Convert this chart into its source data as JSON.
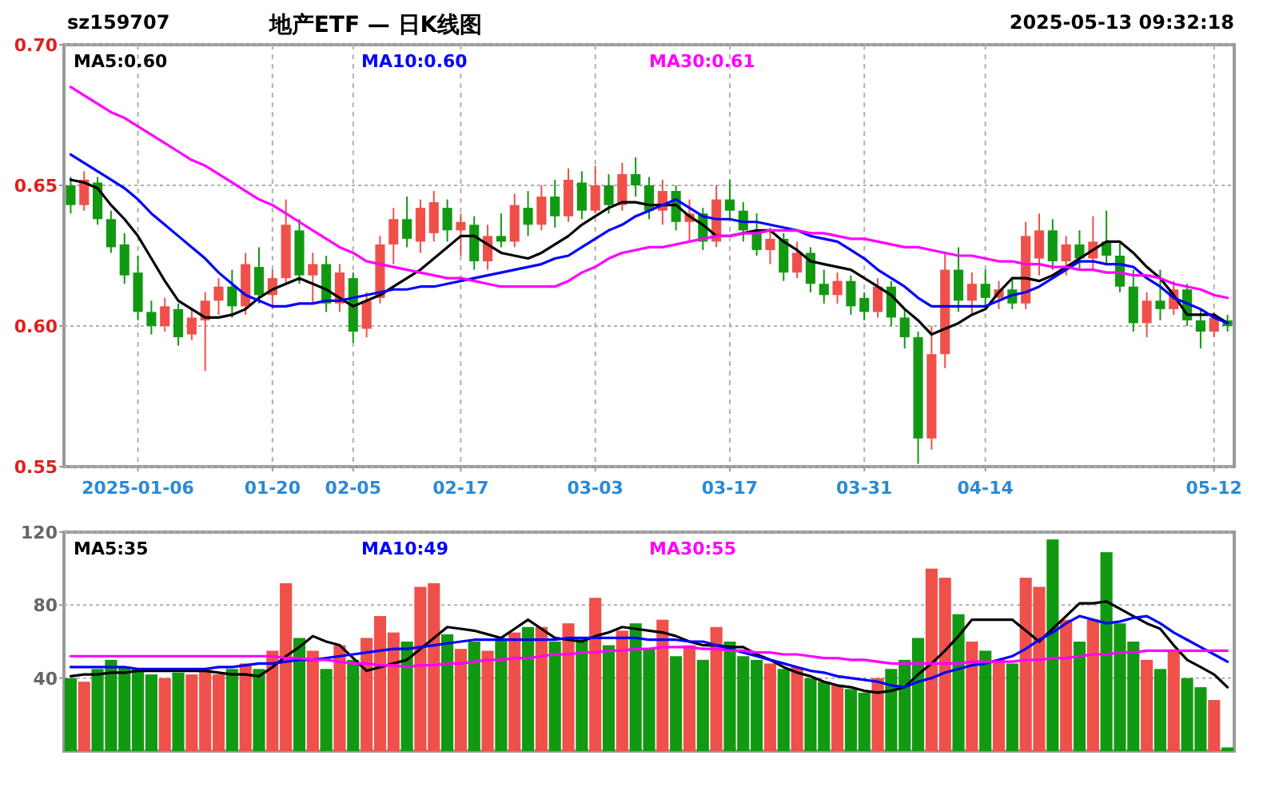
{
  "chart_data": [
    {
      "type": "candlestick",
      "title": "地产ETF — 日K线图",
      "annotations": [
        "sz159707",
        "2025-05-13 09:32:18"
      ],
      "categories": [
        null,
        null,
        null,
        null,
        null,
        "2025-01-06",
        null,
        null,
        null,
        null,
        null,
        null,
        null,
        null,
        null,
        "01-20",
        null,
        null,
        null,
        null,
        null,
        "02-05",
        null,
        null,
        null,
        null,
        null,
        null,
        null,
        "02-17",
        null,
        null,
        null,
        null,
        null,
        null,
        null,
        null,
        null,
        "03-03",
        null,
        null,
        null,
        null,
        null,
        null,
        null,
        null,
        null,
        "03-17",
        null,
        null,
        null,
        null,
        null,
        null,
        null,
        null,
        null,
        "03-31",
        null,
        null,
        null,
        null,
        null,
        null,
        null,
        null,
        "04-14",
        null,
        null,
        null,
        null,
        null,
        null,
        null,
        null,
        null,
        null,
        null,
        null,
        null,
        null,
        null,
        null,
        "05-12",
        null
      ],
      "ohlc": [
        [
          0.65,
          0.653,
          0.64,
          0.643
        ],
        [
          0.643,
          0.655,
          0.641,
          0.652
        ],
        [
          0.651,
          0.653,
          0.636,
          0.638
        ],
        [
          0.638,
          0.641,
          0.626,
          0.628
        ],
        [
          0.629,
          0.633,
          0.615,
          0.618
        ],
        [
          0.619,
          0.625,
          0.602,
          0.605
        ],
        [
          0.605,
          0.609,
          0.597,
          0.6
        ],
        [
          0.6,
          0.61,
          0.598,
          0.607
        ],
        [
          0.606,
          0.608,
          0.593,
          0.596
        ],
        [
          0.597,
          0.606,
          0.595,
          0.603
        ],
        [
          0.602,
          0.612,
          0.584,
          0.609
        ],
        [
          0.609,
          0.617,
          0.604,
          0.614
        ],
        [
          0.614,
          0.62,
          0.603,
          0.607
        ],
        [
          0.607,
          0.626,
          0.604,
          0.622
        ],
        [
          0.621,
          0.628,
          0.608,
          0.611
        ],
        [
          0.611,
          0.62,
          0.606,
          0.617
        ],
        [
          0.617,
          0.645,
          0.615,
          0.636
        ],
        [
          0.634,
          0.638,
          0.615,
          0.618
        ],
        [
          0.618,
          0.626,
          0.608,
          0.622
        ],
        [
          0.622,
          0.625,
          0.605,
          0.608
        ],
        [
          0.608,
          0.622,
          0.605,
          0.619
        ],
        [
          0.617,
          0.619,
          0.594,
          0.598
        ],
        [
          0.599,
          0.612,
          0.596,
          0.609
        ],
        [
          0.61,
          0.632,
          0.608,
          0.629
        ],
        [
          0.629,
          0.642,
          0.622,
          0.638
        ],
        [
          0.638,
          0.646,
          0.628,
          0.631
        ],
        [
          0.63,
          0.645,
          0.626,
          0.642
        ],
        [
          0.633,
          0.648,
          0.63,
          0.644
        ],
        [
          0.642,
          0.645,
          0.63,
          0.634
        ],
        [
          0.634,
          0.64,
          0.625,
          0.637
        ],
        [
          0.636,
          0.639,
          0.62,
          0.623
        ],
        [
          0.623,
          0.636,
          0.62,
          0.632
        ],
        [
          0.632,
          0.64,
          0.628,
          0.63
        ],
        [
          0.63,
          0.647,
          0.628,
          0.643
        ],
        [
          0.642,
          0.648,
          0.632,
          0.636
        ],
        [
          0.636,
          0.65,
          0.634,
          0.646
        ],
        [
          0.646,
          0.652,
          0.635,
          0.639
        ],
        [
          0.639,
          0.656,
          0.637,
          0.652
        ],
        [
          0.651,
          0.655,
          0.638,
          0.641
        ],
        [
          0.641,
          0.657,
          0.64,
          0.65
        ],
        [
          0.65,
          0.654,
          0.64,
          0.643
        ],
        [
          0.643,
          0.658,
          0.641,
          0.654
        ],
        [
          0.654,
          0.66,
          0.646,
          0.65
        ],
        [
          0.65,
          0.653,
          0.638,
          0.641
        ],
        [
          0.641,
          0.652,
          0.636,
          0.648
        ],
        [
          0.648,
          0.65,
          0.634,
          0.637
        ],
        [
          0.637,
          0.645,
          0.63,
          0.64
        ],
        [
          0.64,
          0.642,
          0.627,
          0.63
        ],
        [
          0.63,
          0.65,
          0.628,
          0.645
        ],
        [
          0.645,
          0.652,
          0.638,
          0.641
        ],
        [
          0.641,
          0.644,
          0.63,
          0.634
        ],
        [
          0.634,
          0.64,
          0.625,
          0.627
        ],
        [
          0.627,
          0.635,
          0.622,
          0.631
        ],
        [
          0.631,
          0.633,
          0.616,
          0.619
        ],
        [
          0.619,
          0.63,
          0.617,
          0.626
        ],
        [
          0.626,
          0.628,
          0.612,
          0.615
        ],
        [
          0.615,
          0.62,
          0.608,
          0.611
        ],
        [
          0.611,
          0.619,
          0.608,
          0.616
        ],
        [
          0.616,
          0.618,
          0.604,
          0.607
        ],
        [
          0.61,
          0.612,
          0.602,
          0.605
        ],
        [
          0.605,
          0.617,
          0.603,
          0.614
        ],
        [
          0.614,
          0.616,
          0.6,
          0.603
        ],
        [
          0.603,
          0.606,
          0.592,
          0.596
        ],
        [
          0.596,
          0.598,
          0.551,
          0.56
        ],
        [
          0.56,
          0.6,
          0.556,
          0.59
        ],
        [
          0.59,
          0.626,
          0.585,
          0.62
        ],
        [
          0.62,
          0.628,
          0.605,
          0.609
        ],
        [
          0.609,
          0.619,
          0.604,
          0.615
        ],
        [
          0.615,
          0.62,
          0.607,
          0.61
        ],
        [
          0.61,
          0.616,
          0.606,
          0.613
        ],
        [
          0.613,
          0.617,
          0.606,
          0.608
        ],
        [
          0.608,
          0.637,
          0.606,
          0.632
        ],
        [
          0.624,
          0.64,
          0.618,
          0.634
        ],
        [
          0.634,
          0.638,
          0.62,
          0.623
        ],
        [
          0.623,
          0.632,
          0.618,
          0.629
        ],
        [
          0.629,
          0.634,
          0.62,
          0.624
        ],
        [
          0.624,
          0.639,
          0.62,
          0.63
        ],
        [
          0.63,
          0.641,
          0.622,
          0.625
        ],
        [
          0.625,
          0.63,
          0.612,
          0.614
        ],
        [
          0.614,
          0.62,
          0.598,
          0.601
        ],
        [
          0.601,
          0.612,
          0.596,
          0.609
        ],
        [
          0.609,
          0.62,
          0.602,
          0.606
        ],
        [
          0.606,
          0.616,
          0.604,
          0.613
        ],
        [
          0.613,
          0.615,
          0.6,
          0.602
        ],
        [
          0.602,
          0.606,
          0.592,
          0.598
        ],
        [
          0.598,
          0.605,
          0.596,
          0.603
        ],
        [
          0.602,
          0.604,
          0.598,
          0.6
        ]
      ],
      "colors": [
        "#119911",
        "#f0504a",
        "#119911",
        "#119911",
        "#119911",
        "#119911",
        "#119911",
        "#f0504a",
        "#119911",
        "#f0504a",
        "#f0504a",
        "#f0504a",
        "#119911",
        "#f0504a",
        "#119911",
        "#f0504a",
        "#f0504a",
        "#119911",
        "#f0504a",
        "#119911",
        "#f0504a",
        "#119911",
        "#f0504a",
        "#f0504a",
        "#f0504a",
        "#119911",
        "#f0504a",
        "#f0504a",
        "#119911",
        "#f0504a",
        "#119911",
        "#f0504a",
        "#119911",
        "#f0504a",
        "#119911",
        "#f0504a",
        "#119911",
        "#f0504a",
        "#119911",
        "#f0504a",
        "#119911",
        "#f0504a",
        "#119911",
        "#119911",
        "#f0504a",
        "#119911",
        "#f0504a",
        "#119911",
        "#f0504a",
        "#119911",
        "#119911",
        "#119911",
        "#f0504a",
        "#119911",
        "#f0504a",
        "#119911",
        "#119911",
        "#f0504a",
        "#119911",
        "#119911",
        "#f0504a",
        "#119911",
        "#119911",
        "#119911",
        "#f0504a",
        "#f0504a",
        "#119911",
        "#f0504a",
        "#119911",
        "#f0504a",
        "#119911",
        "#f0504a",
        "#f0504a",
        "#119911",
        "#f0504a",
        "#119911",
        "#f0504a",
        "#119911",
        "#119911",
        "#119911",
        "#f0504a",
        "#119911",
        "#f0504a",
        "#119911",
        "#119911",
        "#f0504a",
        "#119911"
      ],
      "series": [
        {
          "name": "MA5:0.60",
          "color": "#000000",
          "type": "line",
          "values": [
            0.652,
            0.651,
            0.649,
            0.643,
            0.638,
            0.632,
            0.624,
            0.616,
            0.609,
            0.606,
            0.603,
            0.603,
            0.604,
            0.606,
            0.61,
            0.613,
            0.615,
            0.617,
            0.615,
            0.613,
            0.61,
            0.607,
            0.609,
            0.611,
            0.614,
            0.617,
            0.62,
            0.624,
            0.628,
            0.632,
            0.632,
            0.629,
            0.626,
            0.625,
            0.624,
            0.626,
            0.629,
            0.632,
            0.636,
            0.639,
            0.642,
            0.644,
            0.644,
            0.643,
            0.643,
            0.643,
            0.639,
            0.636,
            0.632,
            0.632,
            0.633,
            0.634,
            0.634,
            0.63,
            0.627,
            0.623,
            0.622,
            0.621,
            0.62,
            0.617,
            0.614,
            0.611,
            0.606,
            0.602,
            0.597,
            0.599,
            0.601,
            0.604,
            0.606,
            0.612,
            0.617,
            0.617,
            0.616,
            0.618,
            0.621,
            0.624,
            0.627,
            0.63,
            0.63,
            0.626,
            0.621,
            0.617,
            0.611,
            0.604,
            0.604,
            0.604,
            0.601
          ]
        },
        {
          "name": "MA10:0.60",
          "color": "#0000ff",
          "type": "line",
          "values": [
            0.661,
            0.658,
            0.655,
            0.652,
            0.649,
            0.645,
            0.64,
            0.636,
            0.632,
            0.628,
            0.624,
            0.619,
            0.615,
            0.611,
            0.609,
            0.607,
            0.607,
            0.608,
            0.608,
            0.609,
            0.609,
            0.61,
            0.611,
            0.612,
            0.613,
            0.613,
            0.614,
            0.614,
            0.615,
            0.616,
            0.617,
            0.618,
            0.619,
            0.62,
            0.621,
            0.622,
            0.624,
            0.625,
            0.628,
            0.631,
            0.634,
            0.636,
            0.639,
            0.641,
            0.643,
            0.645,
            0.642,
            0.639,
            0.638,
            0.638,
            0.637,
            0.637,
            0.636,
            0.635,
            0.634,
            0.632,
            0.631,
            0.63,
            0.627,
            0.624,
            0.62,
            0.617,
            0.614,
            0.61,
            0.607,
            0.607,
            0.607,
            0.607,
            0.607,
            0.609,
            0.611,
            0.612,
            0.614,
            0.617,
            0.62,
            0.623,
            0.623,
            0.622,
            0.622,
            0.621,
            0.617,
            0.614,
            0.61,
            0.608,
            0.606,
            0.603,
            0.601
          ]
        },
        {
          "name": "MA30:0.61",
          "color": "#ff00ff",
          "type": "line",
          "values": [
            0.685,
            0.682,
            0.679,
            0.676,
            0.674,
            0.671,
            0.668,
            0.665,
            0.662,
            0.659,
            0.657,
            0.654,
            0.651,
            0.648,
            0.645,
            0.643,
            0.64,
            0.637,
            0.634,
            0.631,
            0.628,
            0.626,
            0.623,
            0.622,
            0.621,
            0.62,
            0.619,
            0.618,
            0.617,
            0.617,
            0.616,
            0.615,
            0.614,
            0.614,
            0.614,
            0.614,
            0.614,
            0.616,
            0.619,
            0.621,
            0.624,
            0.626,
            0.627,
            0.628,
            0.628,
            0.629,
            0.63,
            0.631,
            0.632,
            0.632,
            0.633,
            0.633,
            0.634,
            0.634,
            0.634,
            0.633,
            0.633,
            0.632,
            0.631,
            0.631,
            0.63,
            0.629,
            0.628,
            0.628,
            0.627,
            0.626,
            0.625,
            0.625,
            0.624,
            0.623,
            0.623,
            0.622,
            0.622,
            0.621,
            0.621,
            0.62,
            0.62,
            0.619,
            0.619,
            0.618,
            0.618,
            0.617,
            0.615,
            0.614,
            0.613,
            0.611,
            0.61
          ]
        }
      ],
      "ylim": [
        0.55,
        0.7
      ],
      "yticks": [
        {
          "value": 0.7,
          "label": "0.70"
        },
        {
          "value": 0.65,
          "label": "0.65"
        },
        {
          "value": 0.6,
          "label": "0.60"
        },
        {
          "value": 0.55,
          "label": "0.55"
        }
      ],
      "grid": true,
      "legend": "top left"
    },
    {
      "type": "bar",
      "categories": [
        null,
        null,
        null,
        null,
        null,
        null,
        null,
        null,
        null,
        null,
        null,
        null,
        null,
        null,
        null,
        null,
        null,
        null,
        null,
        null,
        null,
        null,
        null,
        null,
        null,
        null,
        null,
        null,
        null,
        null,
        null,
        null,
        null,
        null,
        null,
        null,
        null,
        null,
        null,
        null,
        null,
        null,
        null,
        null,
        null,
        null,
        null,
        null,
        null,
        null,
        null,
        null,
        null,
        null,
        null,
        null,
        null,
        null,
        null,
        null,
        null,
        null,
        null,
        null,
        null,
        null,
        null,
        null,
        null,
        null,
        null,
        null,
        null,
        null,
        null,
        null,
        null,
        null,
        null,
        null,
        null,
        null,
        null,
        null,
        null,
        null,
        null
      ],
      "values": [
        40,
        38,
        45,
        50,
        46,
        45,
        42,
        40,
        43,
        42,
        45,
        42,
        45,
        48,
        45,
        55,
        92,
        62,
        55,
        45,
        58,
        50,
        62,
        74,
        65,
        60,
        90,
        92,
        64,
        56,
        60,
        55,
        62,
        65,
        68,
        68,
        60,
        70,
        62,
        84,
        58,
        66,
        70,
        56,
        72,
        52,
        58,
        50,
        68,
        60,
        52,
        50,
        48,
        45,
        46,
        40,
        38,
        36,
        34,
        32,
        40,
        45,
        50,
        62,
        100,
        95,
        75,
        60,
        55,
        50,
        48,
        95,
        90,
        116,
        72,
        60,
        72,
        109,
        70,
        60,
        50,
        45,
        55,
        40,
        35,
        28,
        2
      ],
      "colors": [
        "#119911",
        "#f0504a",
        "#119911",
        "#119911",
        "#119911",
        "#119911",
        "#119911",
        "#f0504a",
        "#119911",
        "#f0504a",
        "#f0504a",
        "#f0504a",
        "#119911",
        "#f0504a",
        "#119911",
        "#f0504a",
        "#f0504a",
        "#119911",
        "#f0504a",
        "#119911",
        "#f0504a",
        "#119911",
        "#f0504a",
        "#f0504a",
        "#f0504a",
        "#119911",
        "#f0504a",
        "#f0504a",
        "#119911",
        "#f0504a",
        "#119911",
        "#f0504a",
        "#119911",
        "#f0504a",
        "#119911",
        "#f0504a",
        "#119911",
        "#f0504a",
        "#119911",
        "#f0504a",
        "#119911",
        "#f0504a",
        "#119911",
        "#119911",
        "#f0504a",
        "#119911",
        "#f0504a",
        "#119911",
        "#f0504a",
        "#119911",
        "#119911",
        "#119911",
        "#f0504a",
        "#119911",
        "#f0504a",
        "#119911",
        "#119911",
        "#f0504a",
        "#119911",
        "#119911",
        "#f0504a",
        "#119911",
        "#119911",
        "#119911",
        "#f0504a",
        "#f0504a",
        "#119911",
        "#f0504a",
        "#119911",
        "#f0504a",
        "#119911",
        "#f0504a",
        "#f0504a",
        "#119911",
        "#f0504a",
        "#119911",
        "#f0504a",
        "#119911",
        "#119911",
        "#119911",
        "#f0504a",
        "#119911",
        "#f0504a",
        "#119911",
        "#119911",
        "#f0504a",
        "#119911"
      ],
      "series": [
        {
          "name": "MA5:35",
          "color": "#000000",
          "type": "line",
          "values": [
            41,
            42,
            42,
            43,
            43,
            44,
            44,
            44,
            44,
            44,
            44,
            43,
            42,
            42,
            41,
            46,
            52,
            57,
            63,
            60,
            58,
            51,
            44,
            46,
            48,
            50,
            56,
            62,
            68,
            67,
            66,
            64,
            62,
            67,
            72,
            67,
            62,
            61,
            60,
            63,
            65,
            68,
            67,
            66,
            65,
            63,
            60,
            58,
            58,
            57,
            57,
            53,
            50,
            46,
            43,
            41,
            38,
            36,
            35,
            33,
            32,
            33,
            35,
            42,
            48,
            55,
            63,
            72,
            72,
            72,
            72,
            66,
            60,
            67,
            74,
            81,
            81,
            82,
            78,
            74,
            70,
            67,
            58,
            50,
            46,
            42,
            35
          ]
        },
        {
          "name": "MA10:49",
          "color": "#0000ff",
          "type": "line",
          "values": [
            46,
            46,
            46,
            46,
            46,
            45,
            45,
            45,
            45,
            45,
            45,
            46,
            46,
            47,
            48,
            48,
            49,
            50,
            50,
            51,
            52,
            53,
            54,
            55,
            56,
            56,
            57,
            58,
            59,
            60,
            61,
            61,
            61,
            61,
            61,
            61,
            61,
            62,
            62,
            62,
            62,
            62,
            62,
            61,
            61,
            61,
            60,
            60,
            58,
            56,
            54,
            52,
            50,
            48,
            46,
            44,
            43,
            41,
            40,
            39,
            38,
            36,
            35,
            38,
            40,
            43,
            45,
            47,
            48,
            50,
            52,
            56,
            61,
            65,
            70,
            74,
            72,
            70,
            71,
            73,
            74,
            70,
            65,
            61,
            57,
            53,
            49
          ]
        },
        {
          "name": "MA30:55",
          "color": "#ff00ff",
          "type": "line",
          "values": [
            52,
            52,
            52,
            52,
            52,
            52,
            52,
            52,
            52,
            52,
            52,
            52,
            52,
            52,
            52,
            52,
            51,
            51,
            50,
            50,
            49,
            48,
            48,
            47,
            47,
            46,
            47,
            47,
            48,
            48,
            49,
            50,
            50,
            51,
            51,
            52,
            53,
            53,
            54,
            54,
            55,
            55,
            56,
            56,
            57,
            57,
            57,
            56,
            56,
            55,
            55,
            54,
            54,
            53,
            53,
            52,
            51,
            51,
            50,
            50,
            49,
            48,
            48,
            48,
            48,
            48,
            48,
            49,
            49,
            49,
            49,
            50,
            50,
            51,
            51,
            52,
            53,
            53,
            54,
            54,
            55,
            55,
            55,
            55,
            55,
            55,
            55
          ]
        }
      ],
      "ylim": [
        0,
        120
      ],
      "yticks": [
        40,
        80,
        120
      ],
      "tick_labels": "y",
      "grid": "y",
      "legend": "top left"
    }
  ]
}
